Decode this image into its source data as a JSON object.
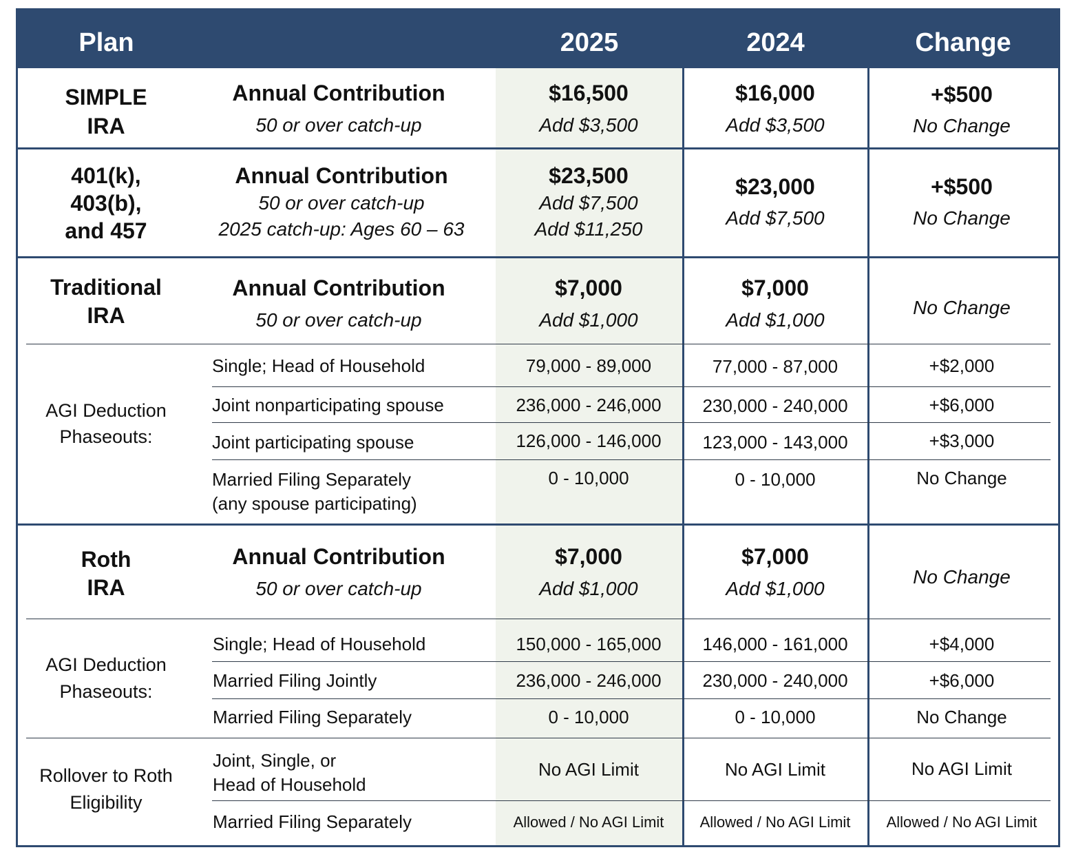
{
  "headers": {
    "plan": "Plan",
    "y2025": "2025",
    "y2024": "2024",
    "change": "Change"
  },
  "simple": {
    "plan_l1": "SIMPLE",
    "plan_l2": "IRA",
    "label": "Annual Contribution",
    "sub": "50 or over catch-up",
    "v2025": "$16,500",
    "v2025_sub": "Add $3,500",
    "v2024": "$16,000",
    "v2024_sub": "Add $3,500",
    "chg": "+$500",
    "chg_sub": "No Change"
  },
  "k401": {
    "plan_l1": "401(k),",
    "plan_l2": "403(b),",
    "plan_l3": "and 457",
    "label": "Annual Contribution",
    "sub1": "50 or over catch-up",
    "sub2": "2025 catch-up: Ages 60 – 63",
    "v2025": "$23,500",
    "v2025_sub1": "Add $7,500",
    "v2025_sub2": "Add $11,250",
    "v2024": "$23,000",
    "v2024_sub": "Add $7,500",
    "chg": "+$500",
    "chg_sub": "No Change"
  },
  "trad": {
    "plan_l1": "Traditional",
    "plan_l2": "IRA",
    "label": "Annual Contribution",
    "sub": "50 or over catch-up",
    "v2025": "$7,000",
    "v2025_sub": "Add $1,000",
    "v2024": "$7,000",
    "v2024_sub": "Add $1,000",
    "chg": "No Change",
    "agi_l1": "AGI Deduction",
    "agi_l2": "Phaseouts:",
    "rows": [
      {
        "label": "Single; Head of Household",
        "v2025": "79,000 - 89,000",
        "v2024": "77,000 - 87,000",
        "chg": "+$2,000"
      },
      {
        "label": "Joint nonparticipating spouse",
        "v2025": "236,000 - 246,000",
        "v2024": "230,000 - 240,000",
        "chg": "+$6,000"
      },
      {
        "label": "Joint participating spouse",
        "v2025": "126,000 - 146,000",
        "v2024": "123,000 - 143,000",
        "chg": "+$3,000"
      },
      {
        "label": "Married Filing Separately",
        "label2": "(any spouse participating)",
        "v2025": "0 - 10,000",
        "v2024": "0 - 10,000",
        "chg": "No Change"
      }
    ]
  },
  "roth": {
    "plan_l1": "Roth",
    "plan_l2": "IRA",
    "label": "Annual Contribution",
    "sub": "50 or over catch-up",
    "v2025": "$7,000",
    "v2025_sub": "Add $1,000",
    "v2024": "$7,000",
    "v2024_sub": "Add $1,000",
    "chg": "No Change",
    "agi_l1": "AGI Deduction",
    "agi_l2": "Phaseouts:",
    "rows": [
      {
        "label": "Single; Head of Household",
        "v2025": "150,000 - 165,000",
        "v2024": "146,000 - 161,000",
        "chg": "+$4,000"
      },
      {
        "label": "Married Filing Jointly",
        "v2025": "236,000 - 246,000",
        "v2024": "230,000 - 240,000",
        "chg": "+$6,000"
      },
      {
        "label": "Married Filing Separately",
        "v2025": "0 - 10,000",
        "v2024": "0 - 10,000",
        "chg": "No Change"
      }
    ]
  },
  "rollover": {
    "label_l1": "Rollover to Roth",
    "label_l2": "Eligibility",
    "row1": {
      "label1": "Joint, Single, or",
      "label2": "Head of Household",
      "v2025": "No AGI Limit",
      "v2024": "No AGI Limit",
      "chg": "No AGI Limit"
    },
    "row2": {
      "label": "Married Filing Separately",
      "v2025": "Allowed / No AGI Limit",
      "v2024": "Allowed / No AGI Limit",
      "chg": "Allowed / No AGI Limit"
    }
  }
}
